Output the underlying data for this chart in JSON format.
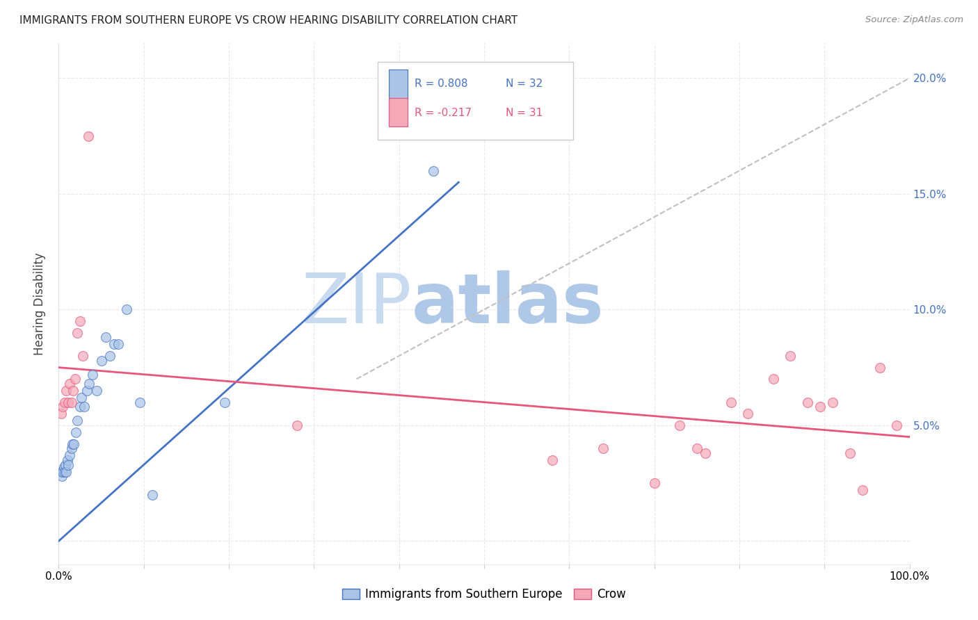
{
  "title": "IMMIGRANTS FROM SOUTHERN EUROPE VS CROW HEARING DISABILITY CORRELATION CHART",
  "source": "Source: ZipAtlas.com",
  "ylabel": "Hearing Disability",
  "xlim": [
    0,
    1.0
  ],
  "ylim": [
    -0.01,
    0.215
  ],
  "yticks": [
    0.0,
    0.05,
    0.1,
    0.15,
    0.2
  ],
  "ytick_labels": [
    "",
    "5.0%",
    "10.0%",
    "15.0%",
    "20.0%"
  ],
  "xticks": [
    0.0,
    0.1,
    0.2,
    0.3,
    0.4,
    0.5,
    0.6,
    0.7,
    0.8,
    0.9,
    1.0
  ],
  "legend_blue_r": "R = 0.808",
  "legend_blue_n": "N = 32",
  "legend_pink_r": "R = -0.217",
  "legend_pink_n": "N = 31",
  "legend_label_blue": "Immigrants from Southern Europe",
  "legend_label_pink": "Crow",
  "blue_scatter_x": [
    0.003,
    0.004,
    0.005,
    0.006,
    0.007,
    0.008,
    0.009,
    0.01,
    0.011,
    0.013,
    0.015,
    0.016,
    0.018,
    0.02,
    0.022,
    0.025,
    0.027,
    0.03,
    0.033,
    0.036,
    0.04,
    0.045,
    0.05,
    0.055,
    0.06,
    0.065,
    0.07,
    0.08,
    0.095,
    0.11,
    0.195,
    0.44
  ],
  "blue_scatter_y": [
    0.03,
    0.028,
    0.03,
    0.032,
    0.03,
    0.033,
    0.03,
    0.035,
    0.033,
    0.037,
    0.04,
    0.042,
    0.042,
    0.047,
    0.052,
    0.058,
    0.062,
    0.058,
    0.065,
    0.068,
    0.072,
    0.065,
    0.078,
    0.088,
    0.08,
    0.085,
    0.085,
    0.1,
    0.06,
    0.02,
    0.06,
    0.16
  ],
  "pink_scatter_x": [
    0.003,
    0.005,
    0.007,
    0.009,
    0.011,
    0.013,
    0.015,
    0.017,
    0.019,
    0.022,
    0.025,
    0.028,
    0.035,
    0.28,
    0.58,
    0.64,
    0.7,
    0.73,
    0.75,
    0.76,
    0.79,
    0.81,
    0.84,
    0.86,
    0.88,
    0.895,
    0.91,
    0.93,
    0.945,
    0.965,
    0.985
  ],
  "pink_scatter_y": [
    0.055,
    0.058,
    0.06,
    0.065,
    0.06,
    0.068,
    0.06,
    0.065,
    0.07,
    0.09,
    0.095,
    0.08,
    0.175,
    0.05,
    0.035,
    0.04,
    0.025,
    0.05,
    0.04,
    0.038,
    0.06,
    0.055,
    0.07,
    0.08,
    0.06,
    0.058,
    0.06,
    0.038,
    0.022,
    0.075,
    0.05
  ],
  "blue_line_x": [
    0.0,
    0.47
  ],
  "blue_line_y": [
    0.0,
    0.155
  ],
  "pink_line_x": [
    0.0,
    1.0
  ],
  "pink_line_y": [
    0.075,
    0.045
  ],
  "diag_line_x": [
    0.35,
    1.0
  ],
  "diag_line_y": [
    0.07,
    0.2
  ],
  "blue_color": "#aac4e8",
  "pink_color": "#f4a8b8",
  "blue_line_color": "#4472c4",
  "pink_line_color": "#e8557a",
  "diag_color": "#c0c0c0",
  "watermark_zip": "ZIP",
  "watermark_atlas": "atlas",
  "watermark_zip_color": "#c8daf0",
  "watermark_atlas_color": "#b0c8e8",
  "background_color": "#ffffff",
  "grid_color": "#e8e8e8",
  "ytick_label_color": "#4472c4"
}
